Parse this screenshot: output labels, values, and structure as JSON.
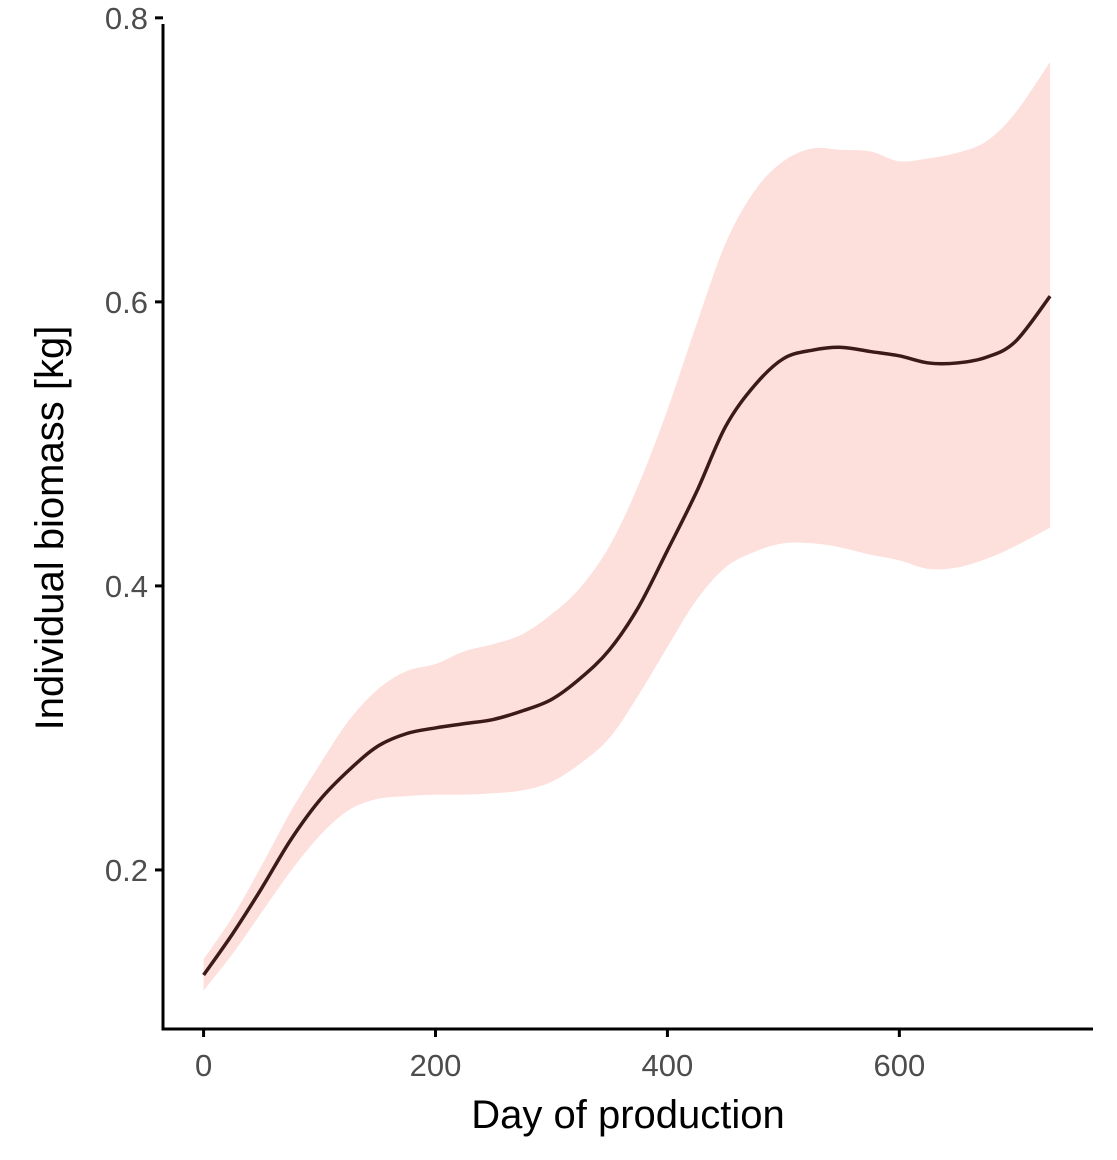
{
  "chart_data": {
    "type": "line",
    "title": "",
    "xlabel": "Day of production",
    "ylabel": "Individual biomass [kg]",
    "xlim": [
      -35,
      767
    ],
    "ylim": [
      0.088,
      0.802
    ],
    "x_ticks": [
      0,
      200,
      400,
      600
    ],
    "x_tick_labels": [
      "0",
      "200",
      "400",
      "600"
    ],
    "y_ticks": [
      0.2,
      0.4,
      0.6,
      0.8
    ],
    "y_tick_labels": [
      "0.2",
      "0.4",
      "0.6",
      "0.8"
    ],
    "grid": false,
    "legend": "none",
    "colors": {
      "line": "#3b1a17",
      "ribbon": "#fddfdc",
      "axis": "#000000",
      "tick_label": "#4d4d4d"
    },
    "series": [
      {
        "x": [
          0,
          25,
          50,
          75,
          100,
          125,
          150,
          175,
          200,
          225,
          250,
          275,
          300,
          325,
          350,
          375,
          400,
          425,
          450,
          475,
          500,
          525,
          550,
          575,
          600,
          625,
          650,
          675,
          700,
          730
        ],
        "y": [
          0.126,
          0.155,
          0.187,
          0.221,
          0.249,
          0.27,
          0.287,
          0.296,
          0.3,
          0.303,
          0.306,
          0.312,
          0.32,
          0.335,
          0.355,
          0.385,
          0.425,
          0.466,
          0.512,
          0.541,
          0.56,
          0.566,
          0.568,
          0.565,
          0.562,
          0.557,
          0.557,
          0.561,
          0.572,
          0.604
        ],
        "lower": [
          0.115,
          0.141,
          0.17,
          0.199,
          0.224,
          0.242,
          0.25,
          0.252,
          0.253,
          0.253,
          0.254,
          0.256,
          0.262,
          0.275,
          0.293,
          0.323,
          0.357,
          0.39,
          0.413,
          0.424,
          0.43,
          0.43,
          0.427,
          0.422,
          0.418,
          0.412,
          0.413,
          0.419,
          0.428,
          0.441
        ],
        "upper": [
          0.137,
          0.167,
          0.203,
          0.241,
          0.274,
          0.305,
          0.327,
          0.34,
          0.345,
          0.354,
          0.359,
          0.366,
          0.38,
          0.399,
          0.428,
          0.471,
          0.524,
          0.584,
          0.641,
          0.678,
          0.699,
          0.708,
          0.707,
          0.706,
          0.699,
          0.701,
          0.705,
          0.713,
          0.733,
          0.769
        ]
      }
    ]
  }
}
